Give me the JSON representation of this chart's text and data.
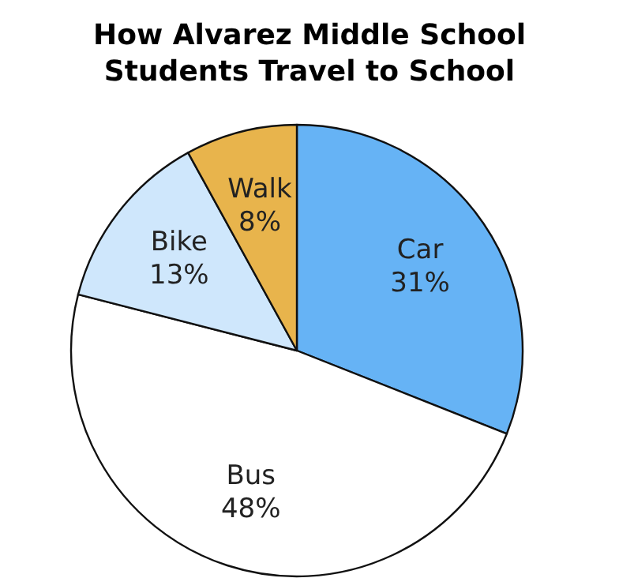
{
  "chart_data": {
    "type": "pie",
    "title": "How Alvarez Middle School\nStudents Travel to School",
    "categories": [
      "Car",
      "Bus",
      "Bike",
      "Walk"
    ],
    "values": [
      31,
      48,
      13,
      8
    ],
    "value_labels": [
      "31%",
      "48%",
      "13%",
      "8%"
    ],
    "colors": [
      "#66b3f5",
      "#ffffff",
      "#cfe7fc",
      "#e8b44c"
    ],
    "legend": false
  }
}
